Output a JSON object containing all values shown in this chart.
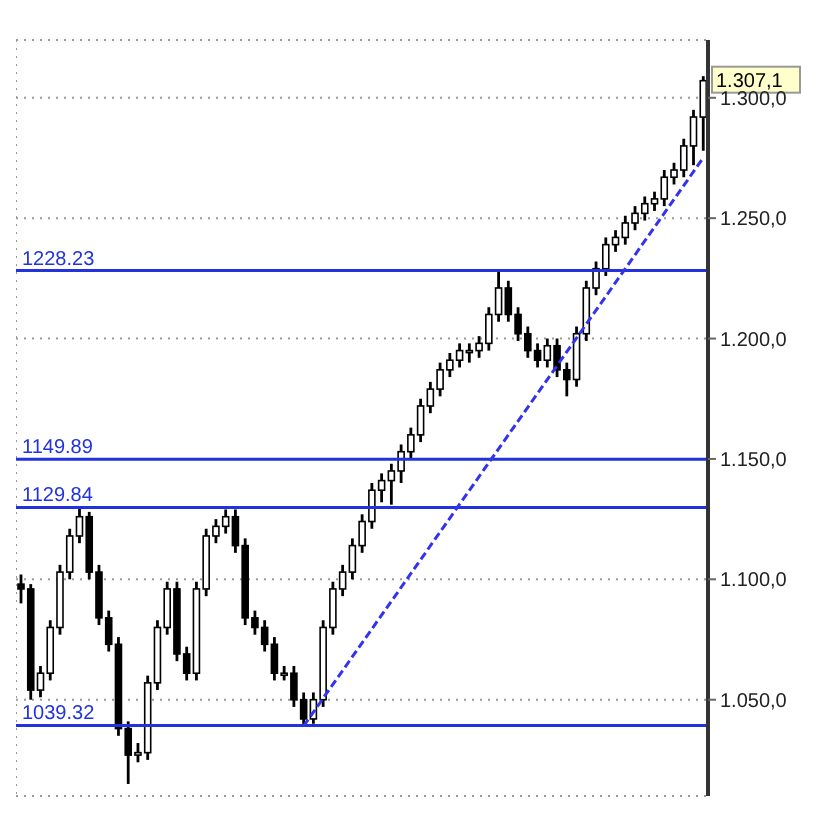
{
  "chart_data": {
    "type": "candlestick",
    "categories": [
      null,
      null,
      null,
      null,
      null,
      null,
      null,
      null,
      null,
      null,
      null,
      null,
      null,
      null,
      null,
      null,
      null,
      null,
      null,
      null,
      null,
      null,
      null,
      null,
      null,
      null,
      null,
      null,
      null,
      null,
      null,
      null,
      null,
      null,
      null,
      null,
      null,
      null,
      null,
      null,
      null,
      null,
      null,
      null,
      null,
      null,
      null,
      null,
      null,
      null,
      null,
      null,
      null,
      null,
      null,
      null,
      null,
      null,
      null,
      null,
      null,
      null,
      null,
      null,
      null,
      null,
      null,
      null,
      null,
      null,
      null
    ],
    "color": "#000000",
    "ohlc": [
      [
        1098,
        1102,
        1090,
        1096
      ],
      [
        1096,
        1098,
        1050,
        1054
      ],
      [
        1054,
        1064,
        1051,
        1061
      ],
      [
        1061,
        1083,
        1058,
        1080
      ],
      [
        1080,
        1106,
        1077,
        1103
      ],
      [
        1103,
        1121,
        1100,
        1118
      ],
      [
        1118,
        1130,
        1115,
        1126
      ],
      [
        1126,
        1128,
        1100,
        1103
      ],
      [
        1103,
        1106,
        1081,
        1084
      ],
      [
        1084,
        1087,
        1070,
        1073
      ],
      [
        1073,
        1076,
        1035,
        1038
      ],
      [
        1038,
        1041,
        1015,
        1027
      ],
      [
        1027,
        1032,
        1024,
        1028
      ],
      [
        1028,
        1060,
        1025,
        1057
      ],
      [
        1057,
        1083,
        1054,
        1080
      ],
      [
        1080,
        1099,
        1077,
        1096
      ],
      [
        1096,
        1099,
        1066,
        1069
      ],
      [
        1069,
        1072,
        1058,
        1061
      ],
      [
        1061,
        1099,
        1058,
        1096
      ],
      [
        1096,
        1121,
        1093,
        1118
      ],
      [
        1118,
        1125,
        1115,
        1122
      ],
      [
        1122,
        1129,
        1119,
        1126
      ],
      [
        1126,
        1129,
        1111,
        1114
      ],
      [
        1114,
        1117,
        1081,
        1084
      ],
      [
        1084,
        1087,
        1077,
        1080
      ],
      [
        1080,
        1083,
        1070,
        1073
      ],
      [
        1073,
        1076,
        1058,
        1061
      ],
      [
        1061,
        1064,
        1058,
        1061
      ],
      [
        1061,
        1064,
        1047,
        1050
      ],
      [
        1050,
        1053,
        1039.32,
        1042
      ],
      [
        1042,
        1053,
        1040,
        1050
      ],
      [
        1050,
        1083,
        1047,
        1080
      ],
      [
        1080,
        1099,
        1077,
        1096
      ],
      [
        1096,
        1106,
        1093,
        1103
      ],
      [
        1103,
        1117,
        1100,
        1114
      ],
      [
        1114,
        1127,
        1111,
        1124
      ],
      [
        1124,
        1140,
        1121,
        1137
      ],
      [
        1137,
        1144,
        1132,
        1141
      ],
      [
        1141,
        1148,
        1131,
        1145
      ],
      [
        1145,
        1156,
        1140,
        1153
      ],
      [
        1153,
        1163,
        1150,
        1160
      ],
      [
        1160,
        1175,
        1157,
        1172
      ],
      [
        1172,
        1182,
        1169,
        1179
      ],
      [
        1179,
        1190,
        1176,
        1187
      ],
      [
        1187,
        1194,
        1184,
        1191
      ],
      [
        1191,
        1198,
        1188,
        1195
      ],
      [
        1195,
        1198,
        1190,
        1195
      ],
      [
        1195,
        1201,
        1192,
        1198
      ],
      [
        1198,
        1213,
        1195,
        1210
      ],
      [
        1210,
        1228.23,
        1207,
        1221
      ],
      [
        1221,
        1224,
        1207,
        1210
      ],
      [
        1210,
        1213,
        1199,
        1202
      ],
      [
        1202,
        1205,
        1192,
        1195
      ],
      [
        1195,
        1198,
        1188,
        1191
      ],
      [
        1191,
        1200,
        1188,
        1197
      ],
      [
        1197,
        1200,
        1184,
        1187
      ],
      [
        1187,
        1190,
        1176,
        1183
      ],
      [
        1183,
        1205,
        1180,
        1202
      ],
      [
        1202,
        1224,
        1199,
        1221
      ],
      [
        1221,
        1232,
        1218,
        1229
      ],
      [
        1229,
        1242,
        1226,
        1239
      ],
      [
        1239,
        1245,
        1236,
        1242
      ],
      [
        1242,
        1251,
        1239,
        1248
      ],
      [
        1248,
        1255,
        1245,
        1252
      ],
      [
        1252,
        1259,
        1249,
        1256
      ],
      [
        1256,
        1261,
        1253,
        1258
      ],
      [
        1258,
        1270,
        1255,
        1267
      ],
      [
        1267,
        1273,
        1264,
        1270
      ],
      [
        1270,
        1283,
        1267,
        1280
      ],
      [
        1280,
        1295,
        1272,
        1292
      ],
      [
        1292,
        1309,
        1278,
        1307.1
      ]
    ],
    "series": [
      {
        "type": "line",
        "color": "#3333ee",
        "line_style": "dashed",
        "values": [
          null,
          null,
          null,
          null,
          null,
          null,
          null,
          null,
          null,
          null,
          null,
          null,
          null,
          null,
          null,
          null,
          null,
          null,
          null,
          null,
          null,
          null,
          null,
          null,
          null,
          null,
          null,
          null,
          null,
          1039,
          null,
          null,
          null,
          null,
          null,
          null,
          null,
          null,
          null,
          null,
          null,
          null,
          null,
          null,
          null,
          null,
          null,
          null,
          null,
          null,
          null,
          null,
          null,
          null,
          null,
          null,
          null,
          null,
          null,
          null,
          null,
          null,
          null,
          null,
          null,
          null,
          null,
          null,
          null,
          null,
          1275
        ]
      }
    ],
    "ylim": [
      1010,
      1324
    ],
    "yticks": [
      {
        "value": 1050,
        "label": "1.050,0"
      },
      {
        "value": 1100,
        "label": "1.100,0"
      },
      {
        "value": 1150,
        "label": "1.150,0"
      },
      {
        "value": 1200,
        "label": "1.200,0"
      },
      {
        "value": 1250,
        "label": "1.250,0"
      },
      {
        "value": 1300,
        "label": "1.300,0"
      }
    ],
    "ref_lines": [
      {
        "axis": "y",
        "value": 1228.23,
        "label": "1228.23",
        "color": "#2233dd"
      },
      {
        "axis": "y",
        "value": 1149.89,
        "label": "1149.89",
        "color": "#2233dd"
      },
      {
        "axis": "y",
        "value": 1129.84,
        "label": "1129.84",
        "color": "#2233dd"
      },
      {
        "axis": "y",
        "value": 1039.32,
        "label": "1039.32",
        "color": "#2233dd"
      }
    ],
    "annotations": [
      "1.307,1"
    ],
    "grid": true
  }
}
